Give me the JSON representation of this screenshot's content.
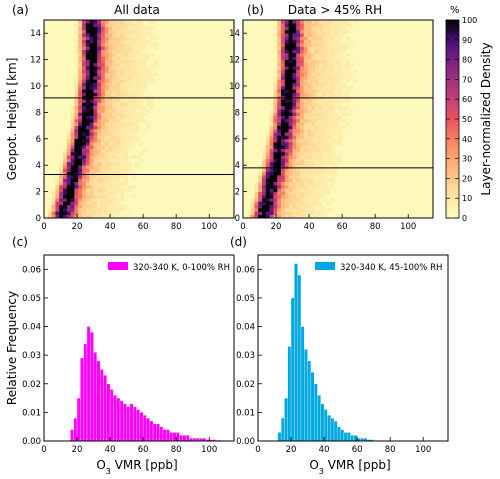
{
  "chart_data": [
    {
      "type": "heatmap",
      "panel_label": "(a)",
      "title": "All data",
      "ylabel": "Geopot. Height [km]",
      "xlabel": "",
      "xlim": [
        0,
        115
      ],
      "ylim": [
        0,
        15
      ],
      "x_ticks": [
        "0",
        "20",
        "40",
        "60",
        "80",
        "100"
      ],
      "y_ticks": [
        "0",
        "2",
        "4",
        "6",
        "8",
        "10",
        "12",
        "14"
      ],
      "horizontal_lines_km": [
        3.3,
        9.1
      ],
      "density_peak_profile": {
        "height_km": [
          0,
          1,
          2,
          3,
          4,
          5,
          6,
          7,
          8,
          9,
          10,
          11,
          12,
          13,
          14,
          15
        ],
        "o3_ppb": [
          10,
          12,
          14,
          16,
          18,
          20,
          22,
          24,
          25,
          26,
          27,
          28,
          28,
          28,
          28,
          28
        ]
      }
    },
    {
      "type": "heatmap",
      "panel_label": "(b)",
      "title": "Data > 45% RH",
      "xlabel": "",
      "xlim": [
        0,
        115
      ],
      "ylim": [
        0,
        15
      ],
      "x_ticks": [
        "0",
        "20",
        "40",
        "60",
        "80",
        "100"
      ],
      "y_ticks": [
        "0",
        "2",
        "4",
        "6",
        "8",
        "10",
        "12",
        "14"
      ],
      "horizontal_lines_km": [
        3.8,
        9.1
      ],
      "density_peak_profile": {
        "height_km": [
          0,
          1,
          2,
          3,
          4,
          5,
          6,
          7,
          8,
          9,
          10,
          11,
          12,
          13,
          14,
          15
        ],
        "o3_ppb": [
          11,
          13,
          15,
          17,
          19,
          21,
          22,
          24,
          25,
          26,
          27,
          28,
          28,
          28,
          28,
          28
        ]
      }
    },
    {
      "type": "bar",
      "panel_label": "(c)",
      "legend": "320-340 K, 0-100% RH",
      "legend_position": "top-right",
      "color": "#ff00ff",
      "xlabel": "O3 VMR [ppb]",
      "ylabel": "Relative Frequency",
      "xlim": [
        0,
        115
      ],
      "ylim": [
        0,
        0.065
      ],
      "bin_width": 2,
      "bin_start": 16,
      "x_ticks": [
        "0",
        "20",
        "40",
        "60",
        "80",
        "100"
      ],
      "y_ticks": [
        "0.00",
        "0.01",
        "0.02",
        "0.03",
        "0.04",
        "0.05",
        "0.06"
      ],
      "values": [
        0.004,
        0.008,
        0.015,
        0.029,
        0.034,
        0.04,
        0.038,
        0.031,
        0.028,
        0.025,
        0.023,
        0.02,
        0.018,
        0.016,
        0.015,
        0.014,
        0.013,
        0.012,
        0.013,
        0.012,
        0.011,
        0.01,
        0.009,
        0.008,
        0.007,
        0.006,
        0.006,
        0.005,
        0.004,
        0.004,
        0.003,
        0.003,
        0.003,
        0.002,
        0.002,
        0.002,
        0.001,
        0.001,
        0.001,
        0.001,
        0.001,
        0.0005,
        0.0005,
        0.0005,
        0.0003,
        0.0003
      ]
    },
    {
      "type": "bar",
      "panel_label": "(d)",
      "legend": "320-340 K, 45-100% RH",
      "legend_position": "top-right",
      "color": "#00a8e0",
      "xlabel": "O3 VMR [ppb]",
      "xlim": [
        0,
        115
      ],
      "ylim": [
        0,
        0.065
      ],
      "bin_width": 2,
      "bin_start": 12,
      "x_ticks": [
        "0",
        "20",
        "40",
        "60",
        "80",
        "100"
      ],
      "y_ticks": [
        "0.00",
        "0.01",
        "0.02",
        "0.03",
        "0.04",
        "0.05",
        "0.06"
      ],
      "values": [
        0.003,
        0.008,
        0.015,
        0.033,
        0.05,
        0.062,
        0.058,
        0.04,
        0.032,
        0.028,
        0.024,
        0.02,
        0.016,
        0.013,
        0.011,
        0.009,
        0.008,
        0.007,
        0.005,
        0.004,
        0.003,
        0.003,
        0.002,
        0.002,
        0.001,
        0.001,
        0.001,
        0.0005,
        0.0005
      ]
    }
  ],
  "colorbar": {
    "label": "Layer-normalized Density",
    "unit": "%",
    "ticks": [
      "0",
      "10",
      "20",
      "30",
      "40",
      "50",
      "60",
      "70",
      "80",
      "90",
      "100"
    ]
  }
}
